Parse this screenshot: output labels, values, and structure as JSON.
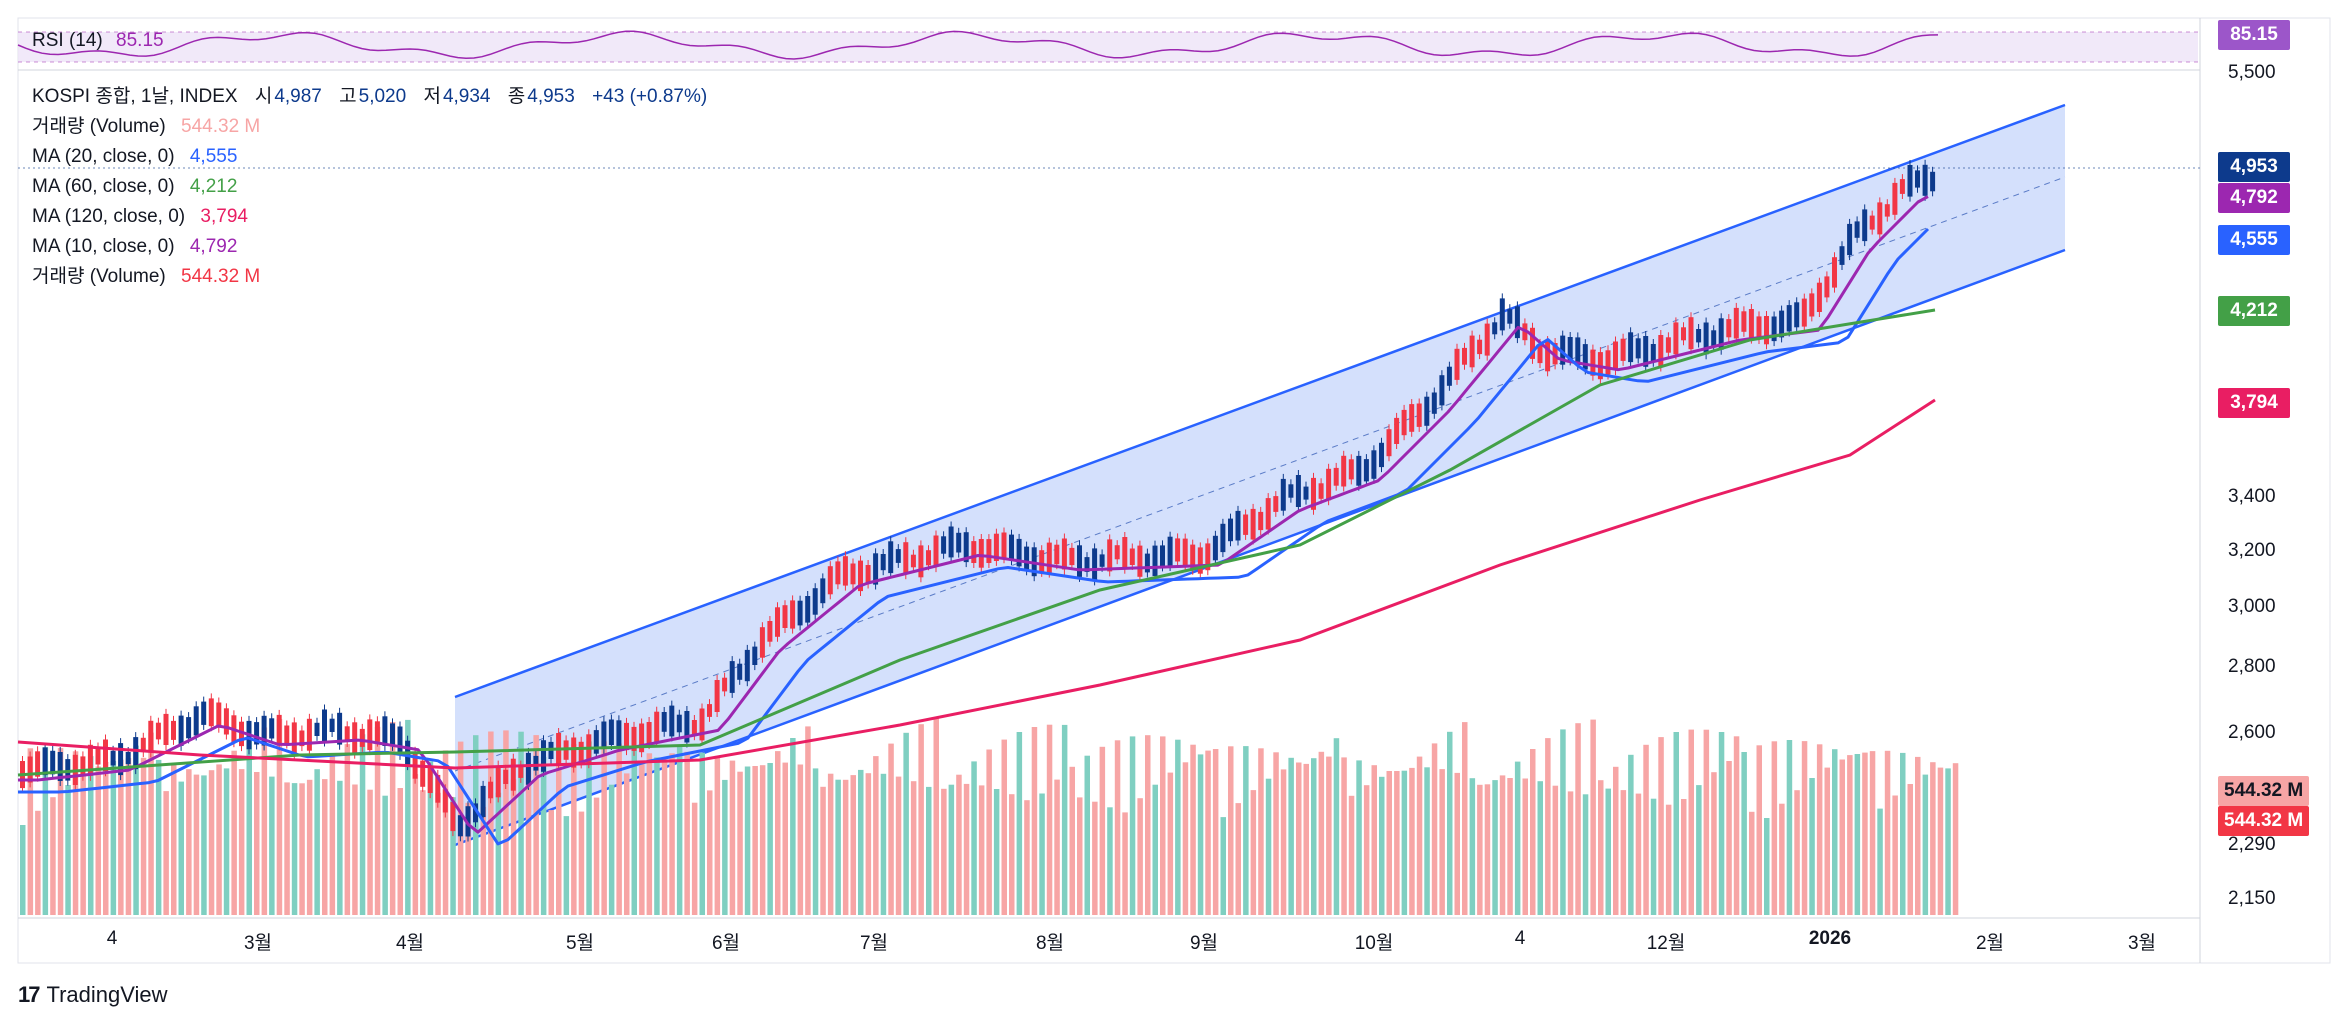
{
  "header": {
    "symbol": "KOSPI 종합, 1날, INDEX",
    "open_label": "시",
    "open": "4,987",
    "high_label": "고",
    "high": "5,020",
    "low_label": "저",
    "low": "4,934",
    "close_label": "종",
    "close": "4,953",
    "change": "+43 (+0.87%)"
  },
  "indicators": [
    {
      "label": "거래량 (Volume)",
      "value": "544.32 M",
      "color": "#f7a5a5"
    },
    {
      "label": "MA (20, close, 0)",
      "value": "4,555",
      "color": "#2962ff"
    },
    {
      "label": "MA (60, close, 0)",
      "value": "4,212",
      "color": "#43a047"
    },
    {
      "label": "MA (120, close, 0)",
      "value": "3,794",
      "color": "#e91e63"
    },
    {
      "label": "MA (10, close, 0)",
      "value": "4,792",
      "color": "#9c27b0"
    },
    {
      "label": "거래량 (Volume)",
      "value": "544.32 M",
      "color": "#f23645"
    }
  ],
  "rsi": {
    "label": "RSI (14)",
    "value": "85.15",
    "color": "#9c27b0"
  },
  "price_badges": [
    {
      "value": "85.15",
      "color": "#9c56c9"
    },
    {
      "value": "4,953",
      "color": "#0d3a8c"
    },
    {
      "value": "4,792",
      "color": "#9c27b0"
    },
    {
      "value": "4,555",
      "color": "#2962ff"
    },
    {
      "value": "4,212",
      "color": "#43a047"
    },
    {
      "value": "3,794",
      "color": "#e91e63"
    },
    {
      "value": "544.32 M",
      "color": "#f7a5a5"
    },
    {
      "value": "544.32 M",
      "color": "#f23645"
    }
  ],
  "footer": {
    "brand": "TradingView"
  },
  "chart_data": {
    "type": "line",
    "title": "",
    "price_axis_ticks": [
      "5,500",
      "3,400",
      "3,200",
      "3,000",
      "2,800",
      "2,600",
      "2,290",
      "2,150"
    ],
    "x_ticks": [
      "4",
      "3월",
      "4월",
      "5월",
      "6월",
      "7월",
      "8월",
      "9월",
      "10월",
      "4",
      "12월",
      "2026",
      "2월",
      "3월"
    ],
    "series": [
      {
        "name": "MA (10, close, 0)",
        "color": "#9c27b0"
      },
      {
        "name": "MA (20, close, 0)",
        "color": "#2962ff"
      },
      {
        "name": "MA (60, close, 0)",
        "color": "#43a047"
      },
      {
        "name": "MA (120, close, 0)",
        "color": "#e91e63"
      }
    ],
    "candles_up_color": "#f23645",
    "candles_down_color": "#0d3a8c"
  }
}
